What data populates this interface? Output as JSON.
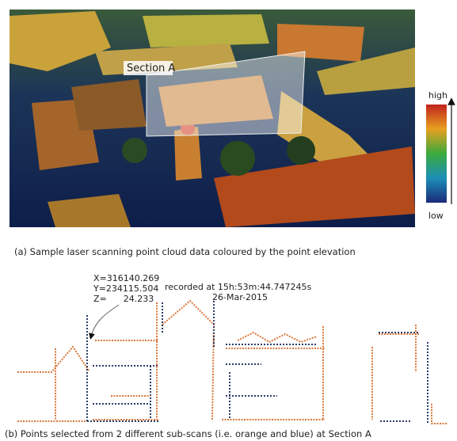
{
  "figure_a": {
    "section_label": "Section A",
    "colorbar": {
      "high": "high",
      "low": "low"
    },
    "caption": "(a) Sample laser scanning point cloud data coloured by the point elevation"
  },
  "figure_b": {
    "point_annotation": {
      "x": "X=316140.269",
      "y": "Y=234115.504",
      "z": "Z=      24.233"
    },
    "timestamp": "recorded at 15h:53m:44.747245s",
    "date": "26-Mar-2015",
    "caption": "(b) Points selected from 2 different sub-scans (i.e. orange and blue) at Section A"
  }
}
